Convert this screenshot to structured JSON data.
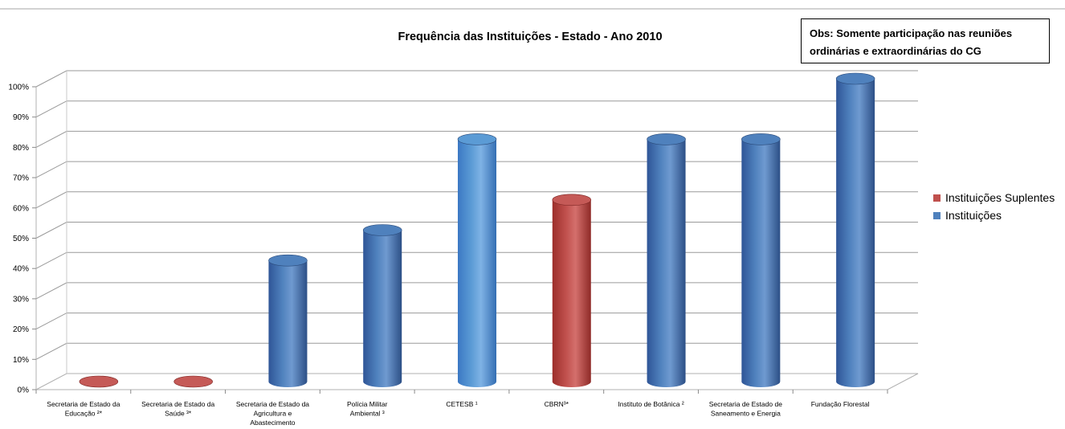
{
  "chart_data": {
    "type": "bar",
    "title": "Frequência das Instituições - Estado - Ano 2010",
    "note": "Obs: Somente participação nas reuniões ordinárias e extraordinárias do CG",
    "note_lines": [
      "Obs: Somente participação nas reuniões",
      "ordinárias e extraordinárias do CG"
    ],
    "categories": [
      [
        "Secretaria de Estado da",
        "Educação ²*"
      ],
      [
        "Secretaria de Estado da",
        "Saúde ³*"
      ],
      [
        "Secretaria de Estado da",
        "Agricultura e",
        "Abastecimento"
      ],
      [
        "Polícia Militar",
        "Ambiental ³"
      ],
      [
        "CETESB ¹"
      ],
      [
        "CBRN³*"
      ],
      [
        "Instituto de Botânica ²"
      ],
      [
        "Secretaria de Estado de",
        "Saneamento e Energia"
      ],
      [
        "Fundação Florestal"
      ]
    ],
    "values": [
      0,
      0,
      40,
      50,
      80,
      60,
      80,
      80,
      100
    ],
    "series_index": [
      0,
      0,
      1,
      1,
      1,
      0,
      1,
      1,
      1
    ],
    "series": [
      {
        "name": "Instituições Suplentes",
        "color": "#c0504d"
      },
      {
        "name": "Instituições",
        "color": "#4f81bd"
      }
    ],
    "highlight_color": "#5b9bd5",
    "highlight_index": 4,
    "yticks": [
      "0%",
      "10%",
      "20%",
      "30%",
      "40%",
      "50%",
      "60%",
      "70%",
      "80%",
      "90%",
      "100%"
    ],
    "ylim": [
      0,
      100
    ],
    "grid": true,
    "legend_position": "right"
  }
}
